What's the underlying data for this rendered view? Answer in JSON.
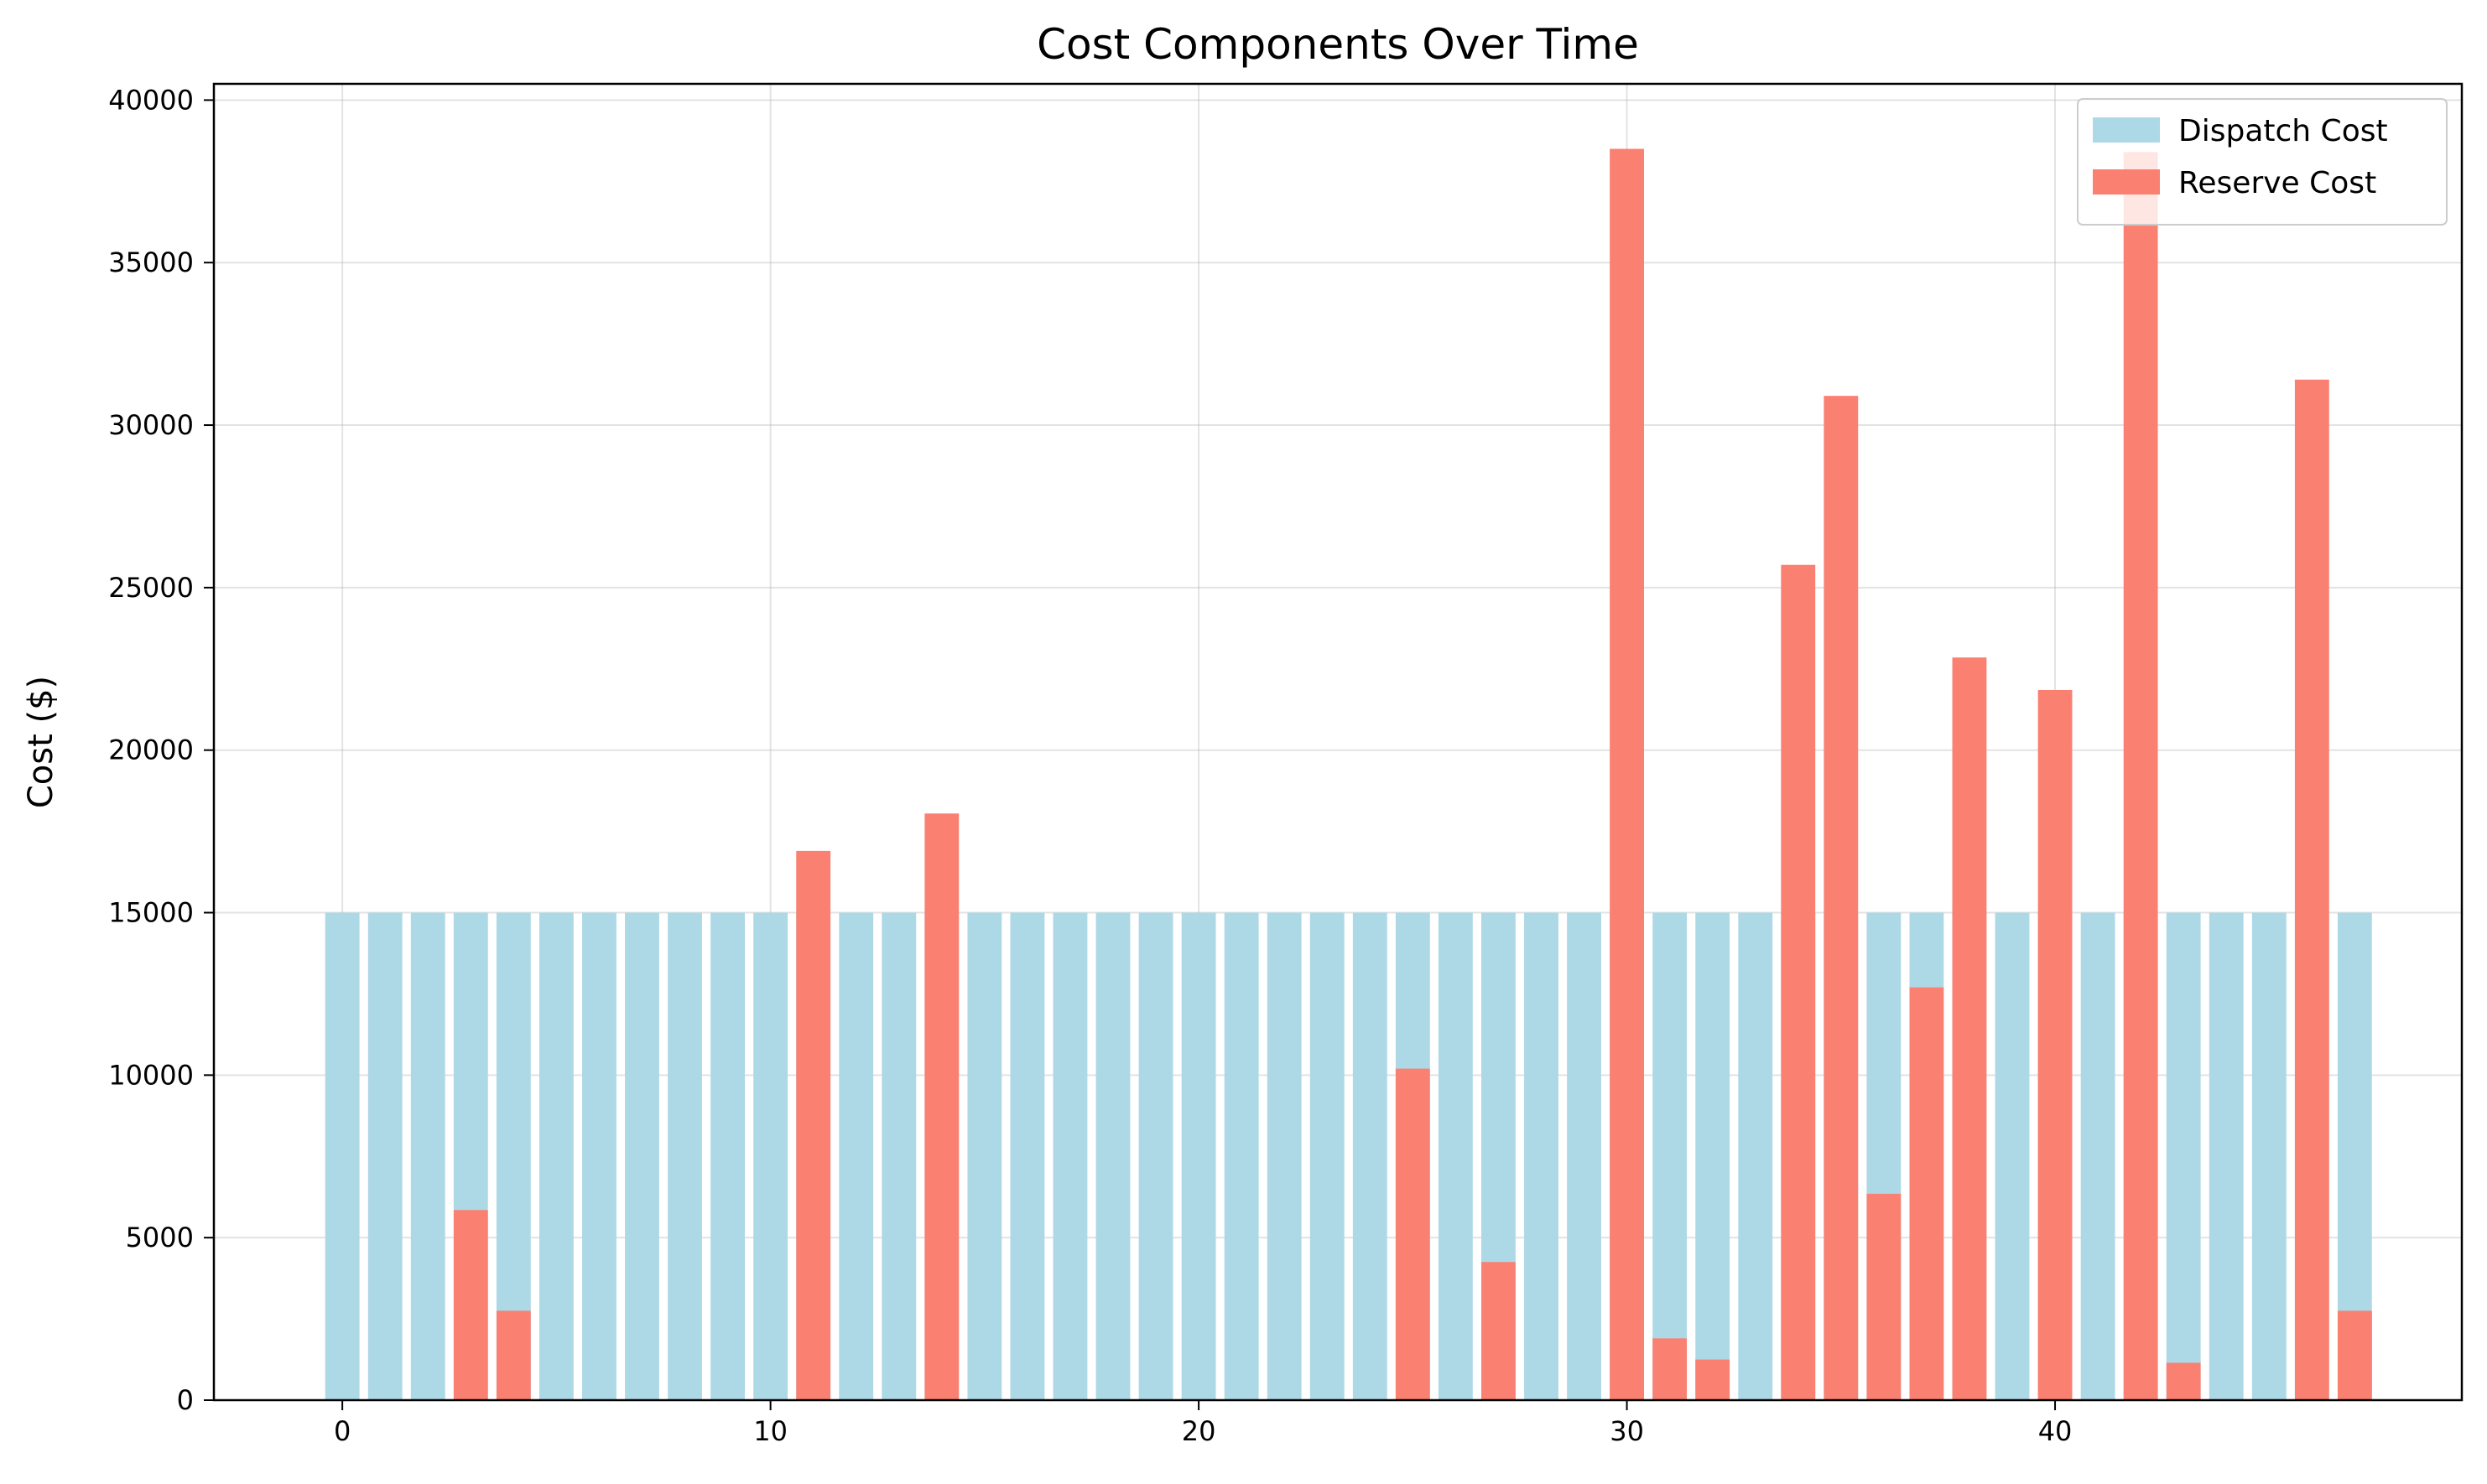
{
  "chart_data": {
    "type": "bar",
    "title": "Cost Components Over Time",
    "xlabel": "",
    "ylabel": "Cost ($)",
    "xlim": [
      -3,
      49.5
    ],
    "ylim": [
      0,
      40500
    ],
    "xticks": [
      0,
      10,
      20,
      30,
      40
    ],
    "yticks": [
      0,
      5000,
      10000,
      15000,
      20000,
      25000,
      30000,
      35000,
      40000
    ],
    "grid": true,
    "legend_position": "top-right",
    "x": [
      0,
      1,
      2,
      3,
      4,
      5,
      6,
      7,
      8,
      9,
      10,
      11,
      12,
      13,
      14,
      15,
      16,
      17,
      18,
      19,
      20,
      21,
      22,
      23,
      24,
      25,
      26,
      27,
      28,
      29,
      30,
      31,
      32,
      33,
      34,
      35,
      36,
      37,
      38,
      39,
      40,
      41,
      42,
      43,
      44,
      45,
      46,
      47
    ],
    "series": [
      {
        "name": "Dispatch Cost",
        "color": "#add8e6",
        "values": [
          15000,
          15000,
          15000,
          15000,
          15000,
          15000,
          15000,
          15000,
          15000,
          15000,
          15000,
          15000,
          15000,
          15000,
          15000,
          15000,
          15000,
          15000,
          15000,
          15000,
          15000,
          15000,
          15000,
          15000,
          15000,
          15000,
          15000,
          15000,
          15000,
          15000,
          15000,
          15000,
          15000,
          15000,
          15000,
          15000,
          15000,
          15000,
          15000,
          15000,
          15000,
          15000,
          15000,
          15000,
          15000,
          15000,
          15000,
          15000
        ]
      },
      {
        "name": "Reserve Cost",
        "color": "#fa8072",
        "values": [
          0,
          0,
          0,
          5850,
          2750,
          0,
          0,
          0,
          0,
          0,
          0,
          16900,
          0,
          0,
          18050,
          0,
          0,
          0,
          0,
          0,
          0,
          0,
          0,
          0,
          0,
          10200,
          0,
          4250,
          0,
          0,
          38500,
          1900,
          1250,
          0,
          25700,
          30900,
          6350,
          12700,
          22850,
          0,
          21850,
          0,
          38400,
          1150,
          0,
          0,
          31400,
          2750
        ]
      }
    ]
  }
}
